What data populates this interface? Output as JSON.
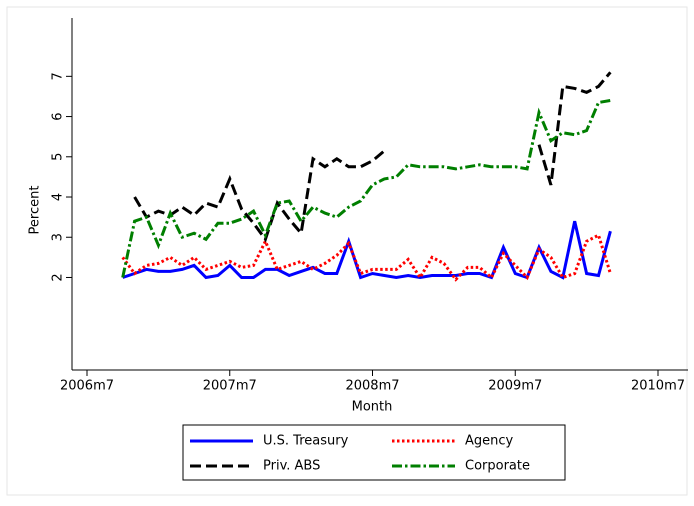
{
  "chart_data": {
    "type": "line",
    "y_label": "Percent",
    "x_label": "Month",
    "x": [
      "2006m10",
      "2006m11",
      "2006m12",
      "2007m1",
      "2007m2",
      "2007m3",
      "2007m4",
      "2007m5",
      "2007m6",
      "2007m7",
      "2007m8",
      "2007m9",
      "2007m10",
      "2007m11",
      "2007m12",
      "2008m1",
      "2008m2",
      "2008m3",
      "2008m4",
      "2008m5",
      "2008m6",
      "2008m7",
      "2008m8",
      "2008m9",
      "2008m10",
      "2008m11",
      "2008m12",
      "2009m1",
      "2009m2",
      "2009m3",
      "2009m4",
      "2009m5",
      "2009m6",
      "2009m7",
      "2009m8",
      "2009m9",
      "2009m10",
      "2009m11",
      "2009m12",
      "2010m1",
      "2010m2",
      "2010m3"
    ],
    "series": [
      {
        "name": "U.S. Treasury",
        "color": "#0000ff",
        "style": "solid",
        "values": [
          2.0,
          2.1,
          2.2,
          2.15,
          2.15,
          2.2,
          2.3,
          2.0,
          2.05,
          2.3,
          2.0,
          2.0,
          2.2,
          2.2,
          2.05,
          2.15,
          2.25,
          2.1,
          2.1,
          2.9,
          2.0,
          2.1,
          2.05,
          2.0,
          2.05,
          2.0,
          2.05,
          2.05,
          2.05,
          2.1,
          2.1,
          2.0,
          2.75,
          2.1,
          2.0,
          2.75,
          2.15,
          2.0,
          3.4,
          2.1,
          2.05,
          3.15
        ]
      },
      {
        "name": "Agency",
        "color": "#ff0000",
        "style": "dot",
        "values": [
          2.5,
          2.1,
          2.3,
          2.35,
          2.5,
          2.3,
          2.5,
          2.2,
          2.3,
          2.4,
          2.25,
          2.3,
          2.9,
          2.2,
          2.3,
          2.4,
          2.2,
          2.35,
          2.55,
          2.85,
          2.1,
          2.2,
          2.2,
          2.2,
          2.45,
          2.0,
          2.5,
          2.35,
          1.95,
          2.25,
          2.25,
          2.0,
          2.6,
          2.3,
          2.0,
          2.7,
          2.5,
          2.0,
          2.1,
          2.9,
          3.05,
          2.1
        ]
      },
      {
        "name": "Priv. ABS",
        "color": "#000000",
        "style": "dash",
        "values": [
          null,
          4.0,
          3.5,
          3.65,
          3.55,
          3.75,
          3.55,
          3.85,
          3.75,
          4.45,
          3.7,
          3.35,
          2.95,
          3.85,
          3.45,
          3.1,
          4.95,
          4.75,
          4.95,
          4.75,
          4.75,
          4.9,
          5.15,
          null,
          null,
          null,
          null,
          null,
          null,
          null,
          null,
          null,
          null,
          null,
          null,
          5.3,
          4.3,
          6.75,
          6.7,
          6.6,
          6.75,
          7.1
        ]
      },
      {
        "name": "Corporate",
        "color": "#007f00",
        "style": "dashdot",
        "values": [
          2.0,
          3.4,
          3.5,
          2.8,
          3.6,
          3.0,
          3.1,
          2.95,
          3.35,
          3.35,
          3.45,
          3.65,
          3.05,
          3.85,
          3.9,
          3.4,
          3.75,
          3.6,
          3.5,
          3.75,
          3.9,
          4.3,
          4.45,
          4.5,
          4.8,
          4.75,
          4.75,
          4.75,
          4.7,
          4.75,
          4.8,
          4.75,
          4.75,
          4.75,
          4.7,
          6.1,
          5.4,
          5.6,
          5.55,
          5.65,
          6.35,
          6.4
        ]
      }
    ],
    "xlim": [
      "2006m7",
      "2010m7"
    ],
    "xticks": [
      "2006m7",
      "2007m7",
      "2008m7",
      "2009m7",
      "2010m7"
    ],
    "ylim": [
      -0.3,
      8.45
    ],
    "yticks": [
      2,
      3,
      4,
      5,
      6,
      7
    ],
    "legend": "bottom"
  }
}
